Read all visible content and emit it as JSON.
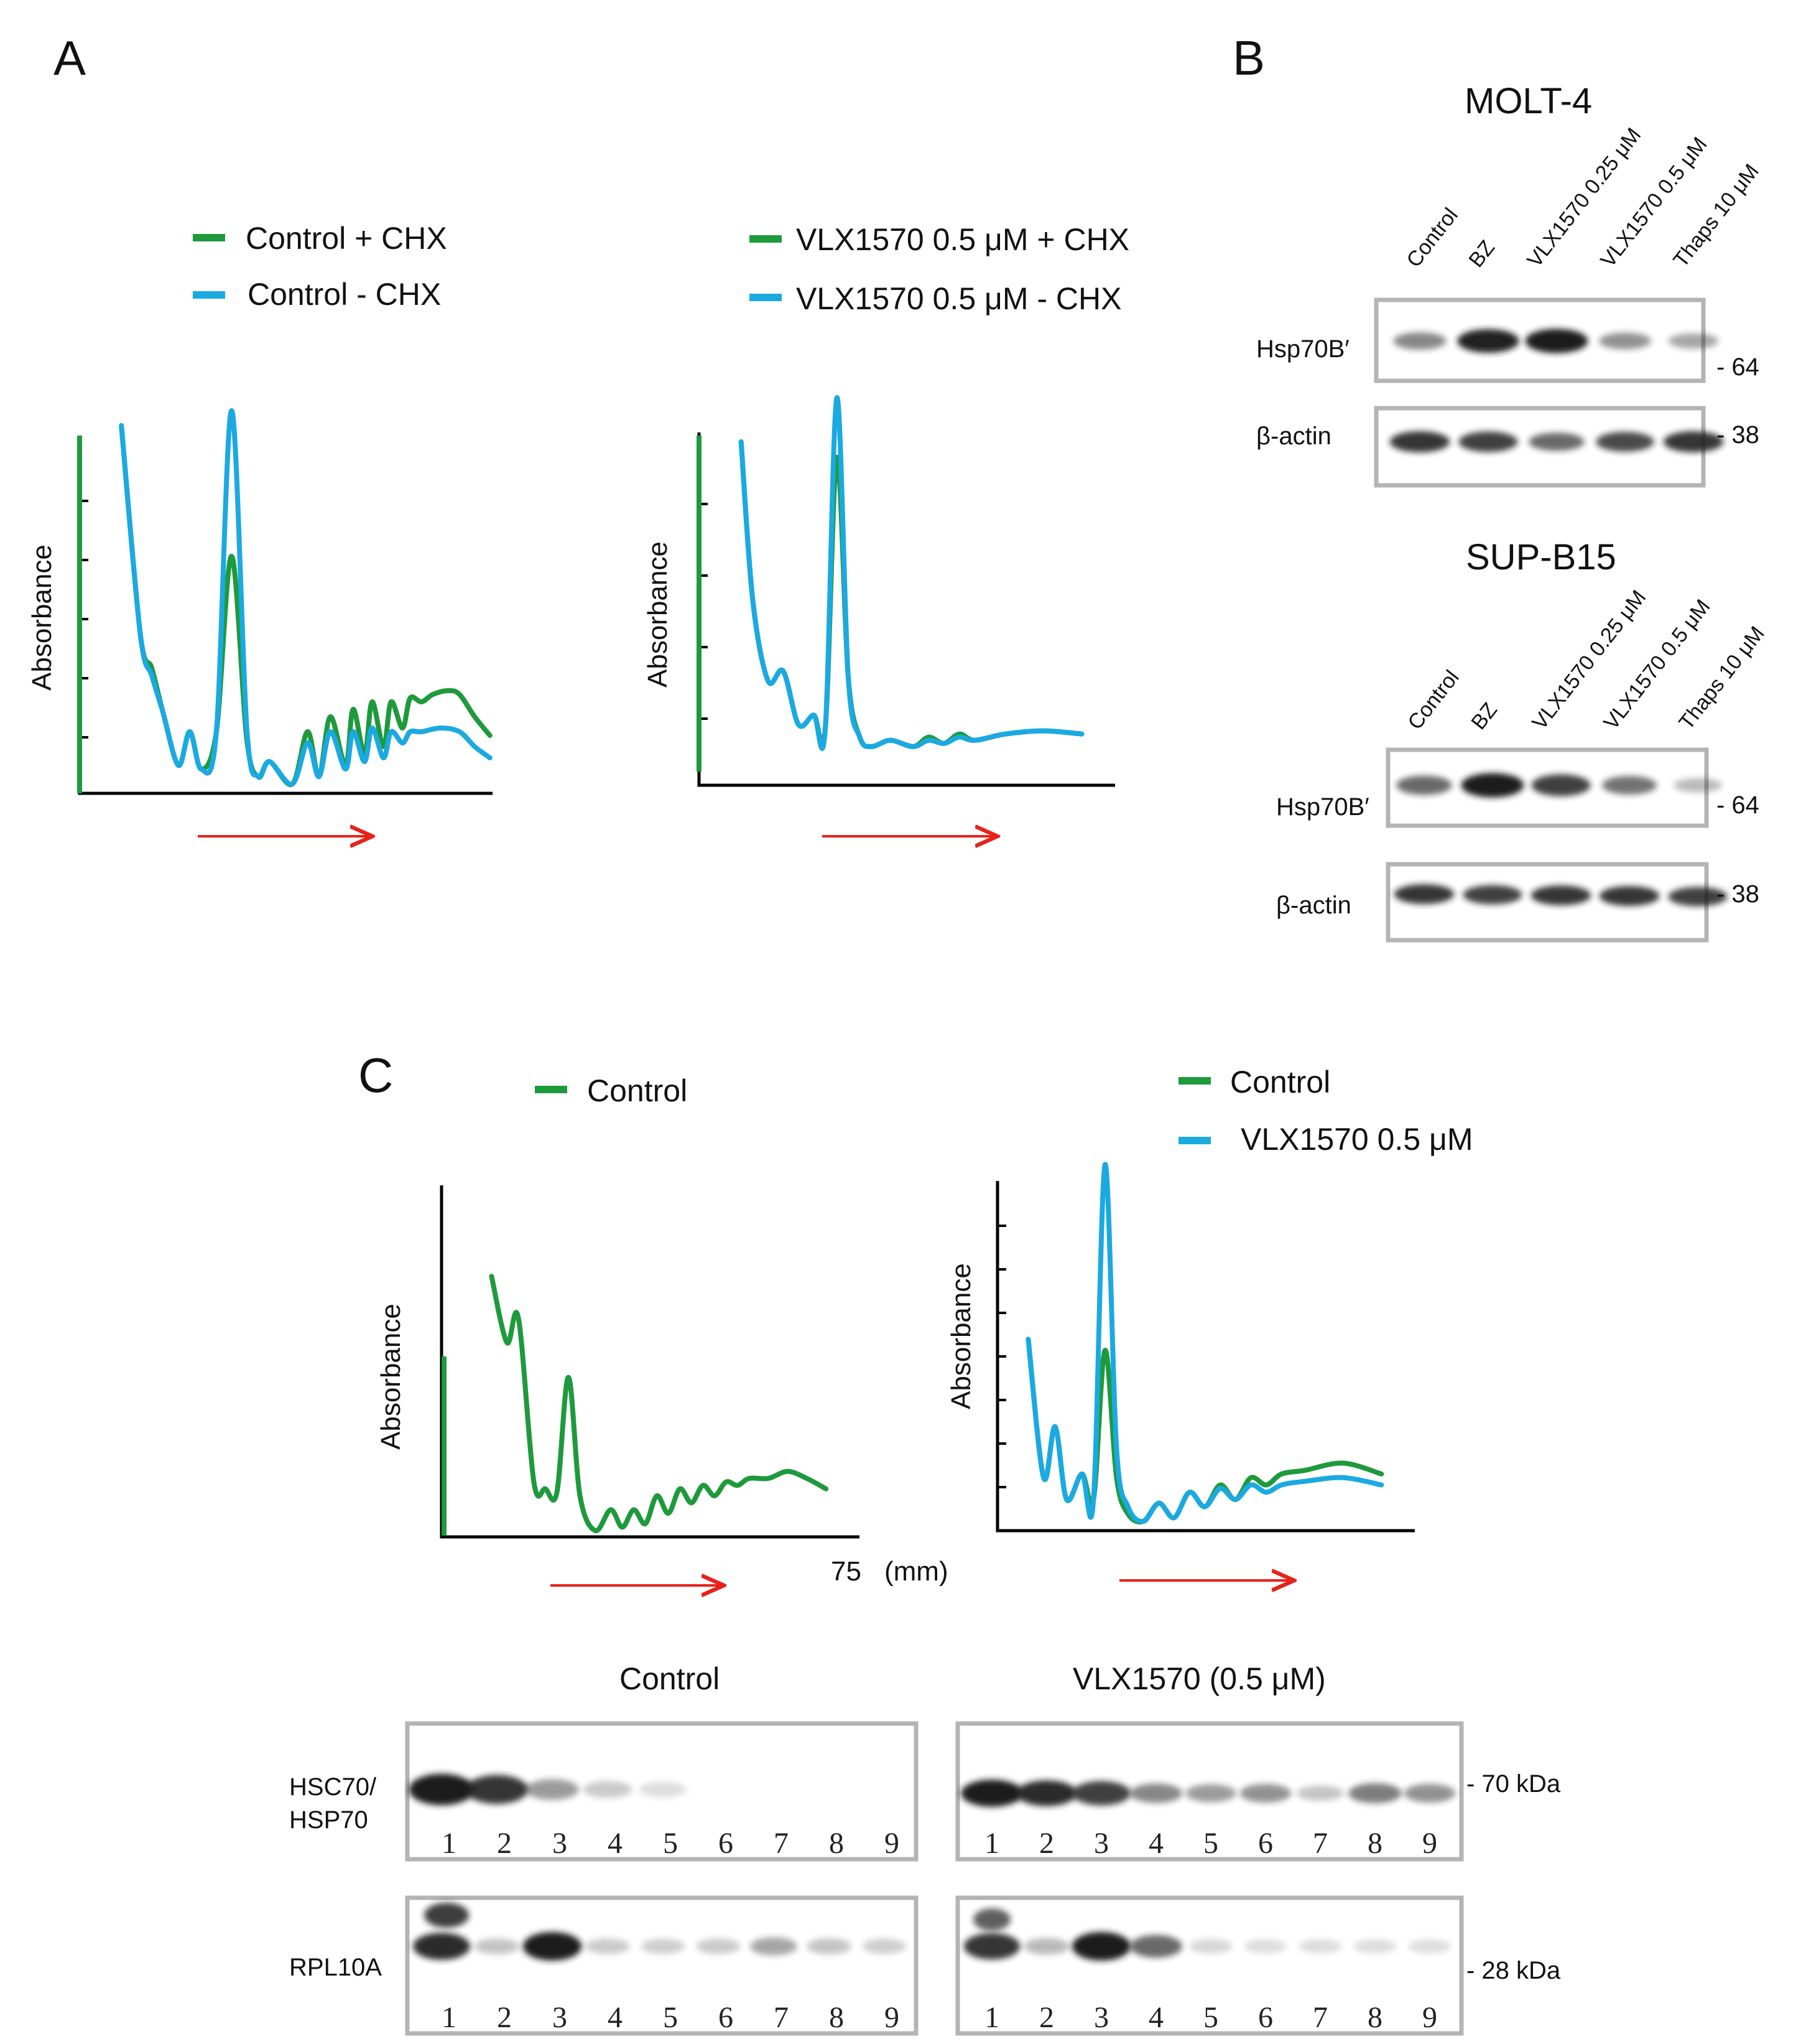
{
  "colors": {
    "green": "#1e9a3c",
    "blue": "#1ba9e2",
    "arrow": "#e8211b",
    "frame": "#b4b4b4",
    "band": "#1a1a1a"
  },
  "panel_A": {
    "label": "A",
    "left": {
      "legend": [
        {
          "text": "Control + CHX",
          "color": "green"
        },
        {
          "text": "Control - CHX",
          "color": "blue"
        }
      ],
      "ylabel": "Absorbance"
    },
    "right": {
      "legend": [
        {
          "text": "VLX1570 0.5 μM + CHX",
          "color": "green"
        },
        {
          "text": "VLX1570 0.5 μM  -  CHX",
          "color": "blue"
        }
      ],
      "ylabel": "Absorbance"
    }
  },
  "panel_B": {
    "label": "B",
    "molt4": {
      "title": "MOLT-4",
      "lanes": [
        "Control",
        "BZ",
        "VLX1570 0.25 μM",
        "VLX1570 0.5 μM",
        "Thaps 10 μM"
      ],
      "rows": [
        {
          "label": "Hsp70B′",
          "marker": "- 64",
          "intensity": [
            0.45,
            0.95,
            1.0,
            0.4,
            0.3
          ]
        },
        {
          "label": "β-actin",
          "marker": "- 38",
          "intensity": [
            0.85,
            0.8,
            0.6,
            0.75,
            0.85
          ]
        }
      ]
    },
    "supb15": {
      "title": "SUP-B15",
      "lanes": [
        "Control",
        "BZ",
        "VLX1570 0.25 μM",
        "VLX1570 0.5 μM",
        "Thaps 10 μM"
      ],
      "rows": [
        {
          "label": "Hsp70B′",
          "marker": "- 64",
          "intensity": [
            0.6,
            1.0,
            0.8,
            0.55,
            0.2
          ]
        },
        {
          "label": "β-actin",
          "marker": "- 38",
          "intensity": [
            0.85,
            0.8,
            0.85,
            0.85,
            0.8
          ]
        }
      ]
    }
  },
  "panel_C": {
    "label": "C",
    "left": {
      "legend": [
        {
          "text": "Control",
          "color": "green"
        }
      ],
      "ylabel": "Absorbance",
      "xtick": "75",
      "xunit": "(mm)"
    },
    "right": {
      "legend": [
        {
          "text": "Control",
          "color": "green"
        },
        {
          "text": "VLX1570 0.5 μM",
          "color": "blue"
        }
      ],
      "ylabel": "Absorbance"
    },
    "blots": {
      "control_title": "Control",
      "vlx_title": "VLX1570 (0.5 μM)",
      "row1_label_a": "HSC70/",
      "row1_label_b": "HSP70",
      "row2_label": "RPL10A",
      "marker_70": "- 70 kDa",
      "marker_28": "- 28 kDa",
      "lane_numbers": [
        "1",
        "2",
        "3",
        "4",
        "5",
        "6",
        "7",
        "8",
        "9"
      ],
      "hsc70_control": [
        1.0,
        0.85,
        0.35,
        0.12,
        0.03,
        0.0,
        0.0,
        0.0,
        0.0
      ],
      "hsc70_vlx": [
        1.0,
        0.9,
        0.8,
        0.45,
        0.35,
        0.4,
        0.15,
        0.5,
        0.4
      ],
      "rpl10a_control": [
        0.9,
        0.15,
        1.0,
        0.12,
        0.1,
        0.12,
        0.3,
        0.15,
        0.1
      ],
      "rpl10a_vlx": [
        0.85,
        0.2,
        1.0,
        0.6,
        0.06,
        0.03,
        0.03,
        0.03,
        0.03
      ]
    }
  },
  "chart_data": [
    {
      "type": "line",
      "panel": "A-left",
      "xlabel": "",
      "ylabel": "Absorbance",
      "ylim": [
        0,
        1
      ],
      "series": [
        {
          "name": "Control + CHX",
          "color": "green",
          "x": [
            0.11,
            0.16,
            0.19,
            0.22,
            0.26,
            0.29,
            0.32,
            0.36,
            0.4,
            0.44,
            0.47,
            0.5,
            0.56,
            0.6,
            0.63,
            0.66,
            0.7,
            0.72,
            0.75,
            0.77,
            0.8,
            0.82,
            0.85,
            0.87,
            0.9,
            0.93,
            0.97,
            1.0,
            1.04,
            1.08
          ],
          "y": [
            0.96,
            0.4,
            0.31,
            0.19,
            0.05,
            0.14,
            0.04,
            0.14,
            0.61,
            0.12,
            0.02,
            0.06,
            0.0,
            0.14,
            0.02,
            0.18,
            0.05,
            0.2,
            0.08,
            0.22,
            0.1,
            0.22,
            0.15,
            0.23,
            0.22,
            0.24,
            0.25,
            0.24,
            0.18,
            0.13
          ]
        },
        {
          "name": "Control - CHX",
          "color": "blue",
          "x": [
            0.11,
            0.16,
            0.19,
            0.22,
            0.26,
            0.29,
            0.32,
            0.36,
            0.4,
            0.44,
            0.47,
            0.5,
            0.56,
            0.6,
            0.63,
            0.66,
            0.7,
            0.72,
            0.75,
            0.77,
            0.8,
            0.82,
            0.85,
            0.87,
            0.9,
            0.95,
            1.0,
            1.04,
            1.08
          ],
          "y": [
            0.96,
            0.4,
            0.29,
            0.19,
            0.05,
            0.14,
            0.04,
            0.14,
            1.0,
            0.15,
            0.02,
            0.06,
            0.0,
            0.11,
            0.02,
            0.14,
            0.04,
            0.14,
            0.06,
            0.15,
            0.07,
            0.14,
            0.11,
            0.14,
            0.14,
            0.15,
            0.14,
            0.1,
            0.07
          ]
        }
      ]
    },
    {
      "type": "line",
      "panel": "A-right",
      "xlabel": "",
      "ylabel": "Absorbance",
      "ylim": [
        0,
        1
      ],
      "series": [
        {
          "name": "VLX1570 0.5 μM + CHX",
          "color": "green",
          "x": [
            0.11,
            0.14,
            0.18,
            0.22,
            0.26,
            0.3,
            0.33,
            0.36,
            0.39,
            0.42,
            0.45,
            0.5,
            0.56,
            0.6,
            0.64,
            0.68,
            0.72,
            0.8,
            0.9,
            1.0
          ],
          "y": [
            1.0,
            0.5,
            0.24,
            0.27,
            0.1,
            0.13,
            0.09,
            0.95,
            0.25,
            0.06,
            0.03,
            0.05,
            0.03,
            0.06,
            0.04,
            0.07,
            0.05,
            0.07,
            0.08,
            0.07
          ]
        },
        {
          "name": "VLX1570 0.5 μM  -  CHX",
          "color": "blue",
          "x": [
            0.11,
            0.14,
            0.18,
            0.22,
            0.26,
            0.3,
            0.33,
            0.36,
            0.39,
            0.42,
            0.45,
            0.5,
            0.56,
            0.6,
            0.64,
            0.68,
            0.72,
            0.8,
            0.9,
            1.0
          ],
          "y": [
            1.0,
            0.5,
            0.24,
            0.27,
            0.1,
            0.13,
            0.09,
            1.14,
            0.25,
            0.06,
            0.03,
            0.05,
            0.03,
            0.05,
            0.04,
            0.06,
            0.05,
            0.07,
            0.08,
            0.07
          ]
        }
      ]
    },
    {
      "type": "line",
      "panel": "C-left",
      "xlabel": "75 (mm)",
      "ylabel": "Absorbance",
      "ylim": [
        0,
        1
      ],
      "series": [
        {
          "name": "Control",
          "color": "green",
          "x": [
            0.13,
            0.17,
            0.2,
            0.24,
            0.27,
            0.3,
            0.33,
            0.36,
            0.4,
            0.44,
            0.47,
            0.5,
            0.53,
            0.56,
            0.59,
            0.62,
            0.65,
            0.68,
            0.71,
            0.74,
            0.77,
            0.8,
            0.85,
            0.9,
            0.95,
            1.0
          ],
          "y": [
            0.73,
            0.54,
            0.61,
            0.14,
            0.12,
            0.11,
            0.44,
            0.1,
            0.0,
            0.06,
            0.01,
            0.06,
            0.02,
            0.1,
            0.05,
            0.12,
            0.08,
            0.13,
            0.1,
            0.14,
            0.13,
            0.15,
            0.15,
            0.17,
            0.15,
            0.12
          ]
        }
      ]
    },
    {
      "type": "line",
      "panel": "C-right",
      "xlabel": "",
      "ylabel": "Absorbance",
      "ylim": [
        0,
        1
      ],
      "series": [
        {
          "name": "Control",
          "color": "green",
          "x": [
            0.08,
            0.12,
            0.15,
            0.18,
            0.22,
            0.25,
            0.28,
            0.31,
            0.34,
            0.38,
            0.42,
            0.46,
            0.5,
            0.54,
            0.58,
            0.62,
            0.66,
            0.7,
            0.74,
            0.8,
            0.9,
            1.0
          ],
          "y": [
            0.5,
            0.12,
            0.26,
            0.06,
            0.13,
            0.06,
            0.47,
            0.12,
            0.02,
            0.0,
            0.05,
            0.01,
            0.08,
            0.04,
            0.1,
            0.06,
            0.12,
            0.1,
            0.13,
            0.14,
            0.16,
            0.13
          ]
        },
        {
          "name": "VLX1570 0.5 μM",
          "color": "blue",
          "x": [
            0.08,
            0.12,
            0.15,
            0.18,
            0.22,
            0.25,
            0.28,
            0.31,
            0.34,
            0.38,
            0.42,
            0.46,
            0.5,
            0.54,
            0.58,
            0.62,
            0.66,
            0.7,
            0.74,
            0.8,
            0.9,
            1.0
          ],
          "y": [
            0.5,
            0.12,
            0.26,
            0.06,
            0.13,
            0.06,
            0.98,
            0.2,
            0.04,
            0.0,
            0.05,
            0.01,
            0.08,
            0.04,
            0.09,
            0.06,
            0.1,
            0.08,
            0.1,
            0.11,
            0.12,
            0.1
          ]
        }
      ]
    }
  ]
}
